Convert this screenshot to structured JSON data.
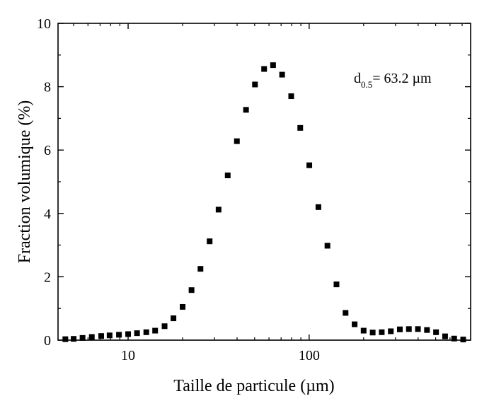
{
  "chart_data": {
    "type": "scatter",
    "title": "",
    "xlabel": "Taille de particule (µm)",
    "ylabel": "Fraction volumique (%)",
    "xscale": "log",
    "xlim": [
      4.1,
      780
    ],
    "ylim": [
      0,
      10
    ],
    "xticks": [
      10,
      100
    ],
    "xtick_labels": [
      "10",
      "100"
    ],
    "yticks": [
      0,
      2,
      4,
      6,
      8,
      10
    ],
    "ytick_labels": [
      "0",
      "2",
      "4",
      "6",
      "8",
      "10"
    ],
    "grid": false,
    "legend": "none",
    "marker": "square",
    "marker_color": "#000000",
    "annotation": {
      "prefix": "d",
      "subscript": "0.5",
      "text": "= 63.2 µm"
    },
    "series": [
      {
        "x": [
          4.5,
          5.0,
          5.6,
          6.3,
          7.1,
          7.9,
          8.9,
          10.0,
          11.2,
          12.6,
          14.1,
          15.9,
          17.8,
          20.0,
          22.4,
          25.1,
          28.2,
          31.6,
          35.5,
          39.9,
          44.8,
          50.2,
          56.4,
          63.2,
          70.9,
          79.6,
          89.3,
          100.2,
          112.5,
          126.2,
          141.6,
          158.9,
          178.3,
          200.0,
          224.4,
          251.8,
          282.5,
          317.0,
          355.6,
          399.0,
          447.7,
          502.4,
          563.7,
          632.5,
          709.6
        ],
        "y": [
          0.03,
          0.04,
          0.07,
          0.1,
          0.13,
          0.15,
          0.17,
          0.19,
          0.22,
          0.25,
          0.3,
          0.44,
          0.69,
          1.05,
          1.58,
          2.25,
          3.12,
          4.12,
          5.2,
          6.28,
          7.27,
          8.07,
          8.56,
          8.68,
          8.38,
          7.7,
          6.7,
          5.52,
          4.2,
          2.98,
          1.76,
          0.86,
          0.5,
          0.3,
          0.24,
          0.25,
          0.28,
          0.34,
          0.35,
          0.35,
          0.32,
          0.25,
          0.12,
          0.05,
          0.02
        ]
      }
    ]
  }
}
